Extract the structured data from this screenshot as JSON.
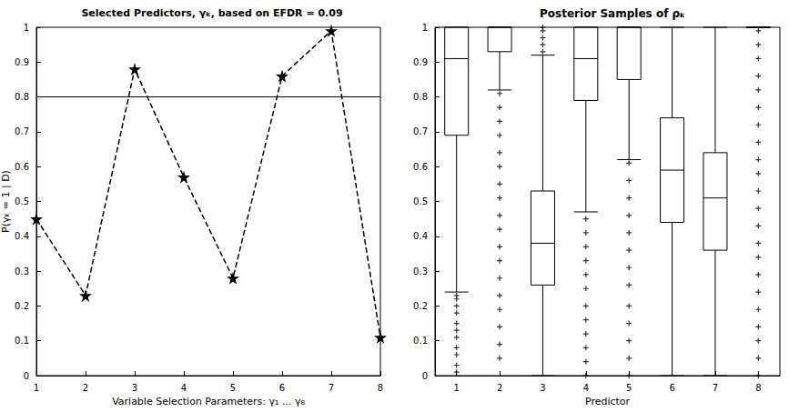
{
  "chart_data": [
    {
      "type": "line",
      "title": "Selected Predictors, γₖ, based on EFDR = 0.09",
      "x_label": "Variable Selection Parameters: γ₁ ... γ₈",
      "y_label": "P(γₖ = 1 | D)",
      "x": [
        1,
        2,
        3,
        4,
        5,
        6,
        7,
        8
      ],
      "values": [
        0.45,
        0.23,
        0.88,
        0.57,
        0.28,
        0.86,
        0.99,
        0.11
      ],
      "threshold": 0.8,
      "xlim": [
        1,
        8
      ],
      "xticks": [
        1,
        2,
        3,
        4,
        5,
        6,
        7,
        8
      ],
      "ylim": [
        0,
        1
      ],
      "yticks": [
        0,
        0.1,
        0.2,
        0.3,
        0.4,
        0.5,
        0.6,
        0.7,
        0.8,
        0.9,
        1
      ],
      "color": "#000000",
      "marker": "star",
      "line_style": "dashed",
      "grid": false
    },
    {
      "type": "boxplot",
      "title": "Posterior Samples of ρₖ",
      "x_label": "Predictor",
      "categories": [
        "1",
        "2",
        "3",
        "4",
        "5",
        "6",
        "7",
        "8"
      ],
      "boxes": [
        {
          "min": 0.24,
          "q1": 0.69,
          "median": 0.91,
          "q3": 1.0,
          "max": 1.0
        },
        {
          "min": 0.82,
          "q1": 0.93,
          "median": 1.0,
          "q3": 1.0,
          "max": 1.0
        },
        {
          "min": 0.0,
          "q1": 0.26,
          "median": 0.38,
          "q3": 0.53,
          "max": 0.92
        },
        {
          "min": 0.47,
          "q1": 0.79,
          "median": 0.91,
          "q3": 1.0,
          "max": 1.0
        },
        {
          "min": 0.62,
          "q1": 0.85,
          "median": 1.0,
          "q3": 1.0,
          "max": 1.0
        },
        {
          "min": 0.0,
          "q1": 0.44,
          "median": 0.59,
          "q3": 0.74,
          "max": 1.0
        },
        {
          "min": 0.0,
          "q1": 0.36,
          "median": 0.51,
          "q3": 0.64,
          "max": 1.0
        },
        {
          "min": 1.0,
          "q1": 1.0,
          "median": 1.0,
          "q3": 1.0,
          "max": 1.0
        }
      ],
      "outliers": [
        [
          0.01,
          0.03,
          0.06,
          0.08,
          0.11,
          0.13,
          0.15,
          0.18,
          0.2,
          0.22,
          0.23
        ],
        [
          0.05,
          0.09,
          0.14,
          0.19,
          0.23,
          0.28,
          0.33,
          0.37,
          0.42,
          0.46,
          0.51,
          0.55,
          0.6,
          0.64,
          0.69,
          0.73,
          0.77,
          0.81
        ],
        [
          0.93,
          0.95,
          0.97,
          0.99,
          1.0
        ],
        [
          0.0,
          0.04,
          0.08,
          0.12,
          0.16,
          0.2,
          0.25,
          0.29,
          0.33,
          0.37,
          0.41,
          0.45
        ],
        [
          0.0,
          0.05,
          0.1,
          0.15,
          0.2,
          0.26,
          0.31,
          0.36,
          0.41,
          0.46,
          0.51,
          0.56,
          0.61
        ],
        [],
        [],
        [
          0.0,
          0.05,
          0.1,
          0.14,
          0.19,
          0.24,
          0.29,
          0.34,
          0.38,
          0.43,
          0.48,
          0.53,
          0.58,
          0.62,
          0.67,
          0.72,
          0.77,
          0.82,
          0.86,
          0.91,
          0.95,
          0.99
        ]
      ],
      "ylim": [
        0,
        1
      ],
      "yticks": [
        0,
        0.1,
        0.2,
        0.3,
        0.4,
        0.5,
        0.6,
        0.7,
        0.8,
        0.9,
        1
      ],
      "color": "#000000",
      "marker": "plus",
      "grid": false
    }
  ]
}
